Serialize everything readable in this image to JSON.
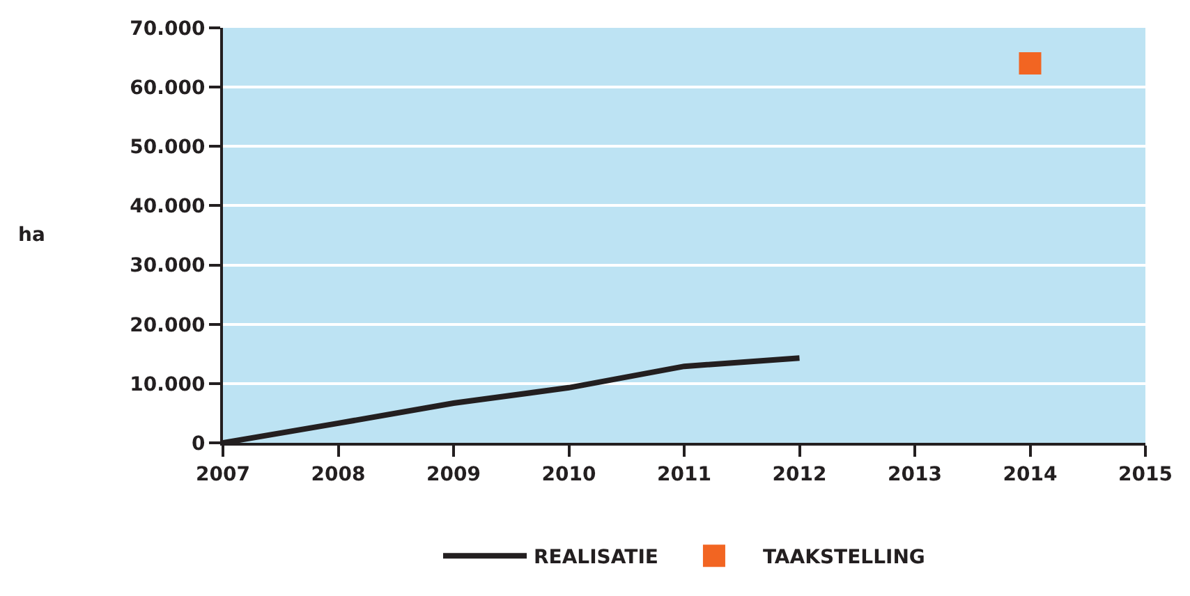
{
  "chart_data": {
    "type": "line",
    "ylabel": "ha",
    "x": [
      2007,
      2008,
      2009,
      2010,
      2011,
      2012
    ],
    "series": [
      {
        "name": "REALISATIE",
        "color": "#231f20",
        "values": [
          0,
          3300,
          6700,
          9300,
          12900,
          14300
        ],
        "marker": "none",
        "line_style": "solid"
      },
      {
        "name": "TAAKSTELLING",
        "type": "scatter",
        "color": "#f26522",
        "x": [
          2014
        ],
        "values": [
          64000
        ],
        "marker": "square"
      }
    ],
    "xlim": [
      2007,
      2015
    ],
    "xticks": [
      2007,
      2008,
      2009,
      2010,
      2011,
      2012,
      2013,
      2014,
      2015
    ],
    "ylim": [
      0,
      70000
    ],
    "yticks": [
      {
        "value": 0,
        "label": "0"
      },
      {
        "value": 10000,
        "label": "10.000"
      },
      {
        "value": 20000,
        "label": "20.000"
      },
      {
        "value": 30000,
        "label": "30.000"
      },
      {
        "value": 40000,
        "label": "40.000"
      },
      {
        "value": 50000,
        "label": "50.000"
      },
      {
        "value": 60000,
        "label": "60.000"
      },
      {
        "value": 70000,
        "label": "70.000"
      }
    ],
    "grid": "y",
    "legend": "bottom"
  }
}
